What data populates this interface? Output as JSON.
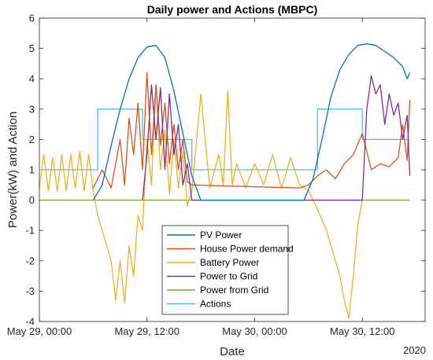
{
  "chart_data": {
    "type": "line",
    "title": "Daily power and Actions (MBPC)",
    "xlabel": "Date",
    "ylabel": "Power(kW) and Action",
    "x_unit": "hours since May 29, 00:00",
    "xlim": [
      0,
      43
    ],
    "ylim": [
      -4,
      6
    ],
    "x_ticks": [
      {
        "value": 0,
        "label": "May 29, 00:00"
      },
      {
        "value": 12,
        "label": "May 29, 12:00"
      },
      {
        "value": 24,
        "label": "May 30, 00:00"
      },
      {
        "value": 36,
        "label": "May 30, 12:00"
      }
    ],
    "x_tick_year": "2020",
    "y_ticks": [
      -4,
      -3,
      -2,
      -1,
      0,
      1,
      2,
      3,
      4,
      5,
      6
    ],
    "legend_position": "bottom-center",
    "series": [
      {
        "name": "PV Power",
        "color": "#0072BD",
        "x": [
          6,
          7,
          8,
          9,
          10,
          11,
          12,
          13,
          14,
          15,
          16,
          17,
          18,
          29.5,
          30.5,
          31.5,
          32.5,
          33.5,
          34.5,
          35.5,
          36.5,
          37.5,
          38.5,
          39.5,
          40.5,
          41,
          41.3
        ],
        "y": [
          0,
          0.5,
          1.8,
          3.0,
          4.0,
          4.7,
          5.05,
          5.1,
          4.7,
          3.6,
          2.2,
          0.8,
          0,
          0,
          0.7,
          2.0,
          3.4,
          4.3,
          4.8,
          5.1,
          5.15,
          5.1,
          4.9,
          4.7,
          4.4,
          4.0,
          4.2
        ]
      },
      {
        "name": "House Power demand",
        "color": "#D95319",
        "x": [
          6,
          7,
          8,
          9,
          9.5,
          10,
          10.5,
          11,
          11.5,
          12,
          12.5,
          13,
          13.5,
          14,
          14.5,
          15,
          15.5,
          16,
          16.5,
          17,
          29,
          30,
          31,
          32,
          33,
          34,
          35,
          36,
          37,
          38,
          39,
          40,
          40.5,
          41,
          41.3
        ],
        "y": [
          0.4,
          1.0,
          0.4,
          2.0,
          0.5,
          2.7,
          1.5,
          3.2,
          1.0,
          4.2,
          1.5,
          3.8,
          1.8,
          3.2,
          1.2,
          2.5,
          1.0,
          2.0,
          0.6,
          0.5,
          0.4,
          0.5,
          0.8,
          1.0,
          0.7,
          1.2,
          1.5,
          2.2,
          1.0,
          1.2,
          1.1,
          1.4,
          2.5,
          1.3,
          3.3
        ]
      },
      {
        "name": "Battery Power",
        "color": "#EDB120",
        "x": [
          0,
          0.5,
          1,
          1.5,
          2,
          2.5,
          3,
          3.5,
          4,
          4.5,
          5,
          5.5,
          6,
          6.5,
          7,
          7.5,
          8,
          8.5,
          9,
          9.5,
          10,
          10.5,
          11,
          11.5,
          12,
          12.5,
          13,
          13.5,
          14,
          14.5,
          15,
          15.5,
          16,
          16.5,
          17,
          18,
          19,
          20,
          20.5,
          21,
          21.5,
          22,
          23,
          24,
          25,
          26,
          27,
          28,
          29,
          30,
          31,
          32,
          33,
          33.5,
          34,
          34.5,
          35,
          35.5,
          36
        ],
        "y": [
          0.4,
          1.5,
          0.3,
          1.4,
          0.3,
          1.5,
          0.3,
          1.5,
          0.4,
          1.6,
          0.3,
          1.5,
          0.3,
          -0.5,
          -1.0,
          -1.5,
          -2.0,
          -3.3,
          -2.0,
          -3.4,
          -1.5,
          -2.5,
          -0.5,
          -1.0,
          2.0,
          0.5,
          3.8,
          1.0,
          2.3,
          0.2,
          2.0,
          0.4,
          1.6,
          -0.2,
          0.3,
          3.5,
          0.4,
          1.5,
          0.5,
          3.6,
          0.5,
          1.2,
          0.4,
          1.2,
          0.5,
          1.5,
          0.4,
          1.4,
          0.5,
          0.3,
          -0.3,
          -1.0,
          -2.0,
          -2.5,
          -3.3,
          -3.9,
          -2.5,
          -0.8,
          0
        ]
      },
      {
        "name": "Power to Grid",
        "color": "#7E2F8E",
        "x": [
          11.5,
          12,
          12.5,
          13,
          13.5,
          14,
          14.5,
          15,
          15.5,
          16,
          16.5,
          17,
          36,
          36.5,
          37,
          37.5,
          38,
          38.5,
          39,
          39.5,
          40,
          40.5,
          41,
          41.3
        ],
        "y": [
          0,
          1.5,
          3.8,
          2.0,
          3.7,
          1.0,
          3.5,
          1.5,
          2.5,
          0.5,
          1.2,
          0,
          0,
          3.0,
          4.1,
          3.5,
          3.8,
          2.5,
          3.5,
          2.8,
          3.2,
          2.0,
          2.8,
          0.8
        ]
      },
      {
        "name": "Power from Grid",
        "color": "#77AC30",
        "x": [
          0,
          41.3
        ],
        "y": [
          0,
          0
        ]
      },
      {
        "name": "Actions",
        "color": "#4DBEEE",
        "x": [
          0,
          6.5,
          6.5,
          11.5,
          11.5,
          17,
          17,
          18,
          18,
          31,
          31,
          32.5,
          32.5,
          36,
          36,
          41.3
        ],
        "y": [
          1,
          1,
          3,
          3,
          2,
          2,
          1,
          1,
          1,
          1,
          3,
          3,
          3,
          3,
          2,
          2
        ]
      }
    ]
  }
}
